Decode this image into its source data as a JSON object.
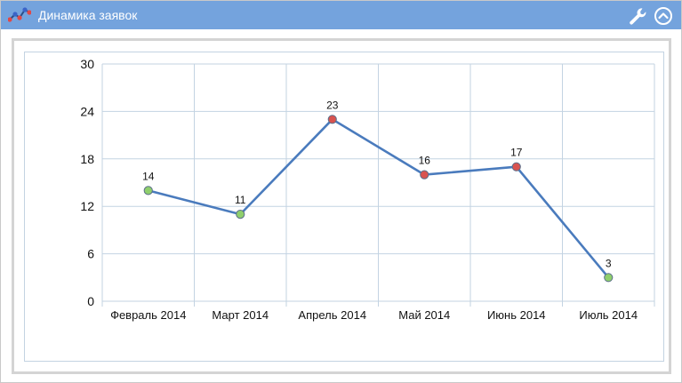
{
  "widget": {
    "title": "Динамика заявок"
  },
  "icons": {
    "title": "line-chart-icon",
    "settings": "wrench-icon",
    "collapse": "chevron-up-circle-icon"
  },
  "colors": {
    "header": "#74a3dd",
    "line": "#4a7bbd",
    "point_green": "#8fcf6c",
    "point_red": "#d9534f",
    "grid": "#c3d3e2"
  },
  "chart_data": {
    "type": "line",
    "categories": [
      "Февраль 2014",
      "Март 2014",
      "Апрель 2014",
      "Май 2014",
      "Июнь 2014",
      "Июль 2014"
    ],
    "values": [
      14,
      11,
      23,
      16,
      17,
      3
    ],
    "point_colors": [
      "green",
      "green",
      "red",
      "red",
      "red",
      "green"
    ],
    "data_labels": [
      "14",
      "11",
      "23",
      "16",
      "17",
      "3"
    ],
    "ylim": [
      0,
      30
    ],
    "yticks": [
      0,
      6,
      12,
      18,
      24,
      30
    ],
    "ytick_labels": [
      "0",
      "6",
      "12",
      "18",
      "24",
      "30"
    ],
    "grid": true,
    "legend": "none"
  }
}
